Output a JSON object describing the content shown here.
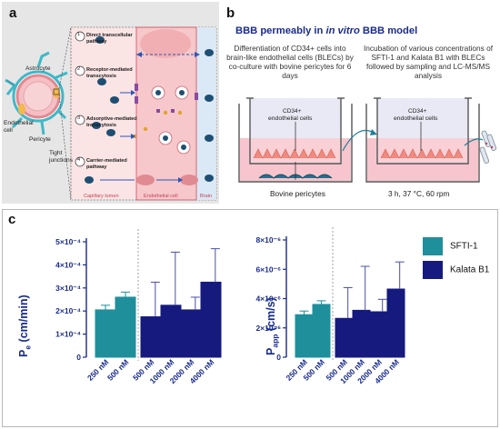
{
  "panel_a": {
    "letter": "a",
    "labels": {
      "astrocyte": "Astrocyte",
      "endothelial_cell": "Endothelial\ncell",
      "pericyte": "Pericyte",
      "tight_junctions": "Tight\njunctions"
    },
    "pathways": [
      {
        "num": "1",
        "text": "Direct transcellular\npathway"
      },
      {
        "num": "2",
        "text": "Receptor-mediated\ntranscytosis"
      },
      {
        "num": "3",
        "text": "Adsorptive-mediated\ntranscytosis"
      },
      {
        "num": "4",
        "text": "Carrier-mediated\npathway"
      }
    ],
    "bottom_labels": {
      "capillary_lumen": "Capillary lumen",
      "endothelial_cell": "Endothelial cell",
      "brain": "Brain"
    }
  },
  "panel_b": {
    "letter": "b",
    "title_part1": "BBB permeably in ",
    "title_italic": "in vitro",
    "title_part2": " BBB model",
    "desc_left": "Differentiation of CD34+ cells into brain-like endothelial cells (BLECs) by co-culture with bovine pericytes for 6 days",
    "desc_right": "Incubation of various concentrations of SFTI-1 and Kalata B1 with BLECs followed by sampling and LC-MS/MS analysis",
    "label_cd34_left": "CD34+",
    "label_endo_left": "endothelial cells",
    "label_cd34_right": "CD34+",
    "label_endo_right": "endothelial cells",
    "bovine_pericytes": "Bovine pericytes",
    "conditions": "3 h, 37 °C, 60 rpm"
  },
  "panel_c": {
    "letter": "c",
    "legend": [
      {
        "name": "SFTI-1",
        "color": "#1f8f9c"
      },
      {
        "name": "Kalata B1",
        "color": "#161a7e"
      }
    ]
  },
  "chart_data": [
    {
      "type": "bar",
      "ylabel_main": "P",
      "ylabel_sub": "e",
      "ylabel_unit": " (cm/min)",
      "categories": [
        "250 nM",
        "500 nM",
        "500 nM",
        "1000 nM",
        "2000 nM",
        "4000 nM"
      ],
      "series": [
        {
          "name": "SFTI-1",
          "values": [
            0.000205,
            0.00026,
            null,
            null,
            null,
            null
          ],
          "errors": [
            2e-05,
            2.2e-05,
            null,
            null,
            null,
            null
          ]
        },
        {
          "name": "Kalata B1",
          "values": [
            null,
            null,
            0.000175,
            0.000225,
            0.000205,
            0.000325
          ],
          "errors": [
            null,
            null,
            0.00015,
            0.00023,
            5.5e-05,
            0.000145
          ]
        }
      ],
      "ylim": [
        0,
        0.0005
      ],
      "yticks": [
        {
          "v": 0,
          "label": "0"
        },
        {
          "v": 0.0001,
          "label": "1×10⁻⁴"
        },
        {
          "v": 0.0002,
          "label": "2×10⁻⁴"
        },
        {
          "v": 0.0003,
          "label": "3×10⁻⁴"
        },
        {
          "v": 0.0004,
          "label": "4×10⁻⁴"
        },
        {
          "v": 0.0005,
          "label": "5×10⁻⁴"
        }
      ]
    },
    {
      "type": "bar",
      "ylabel_main": "P",
      "ylabel_sub": "app",
      "ylabel_unit": " (cm/s)",
      "categories": [
        "250 nM",
        "500 nM",
        "500 nM",
        "1000 nM",
        "2000 nM",
        "4000 nM"
      ],
      "series": [
        {
          "name": "SFTI-1",
          "values": [
            2.9e-06,
            3.6e-06,
            null,
            null,
            null,
            null
          ],
          "errors": [
            2.5e-07,
            2.5e-07,
            null,
            null,
            null,
            null
          ]
        },
        {
          "name": "Kalata B1",
          "values": [
            null,
            null,
            2.65e-06,
            3.2e-06,
            3.1e-06,
            4.65e-06
          ],
          "errors": [
            null,
            null,
            2.1e-06,
            3e-06,
            8.5e-07,
            1.85e-06
          ]
        }
      ],
      "ylim": [
        0,
        8e-06
      ],
      "yticks": [
        {
          "v": 0,
          "label": "0"
        },
        {
          "v": 2e-06,
          "label": "2×10⁻⁶"
        },
        {
          "v": 4e-06,
          "label": "4×10⁻⁶"
        },
        {
          "v": 6e-06,
          "label": "6×10⁻⁶"
        },
        {
          "v": 8e-06,
          "label": "8×10⁻⁶"
        }
      ]
    }
  ]
}
